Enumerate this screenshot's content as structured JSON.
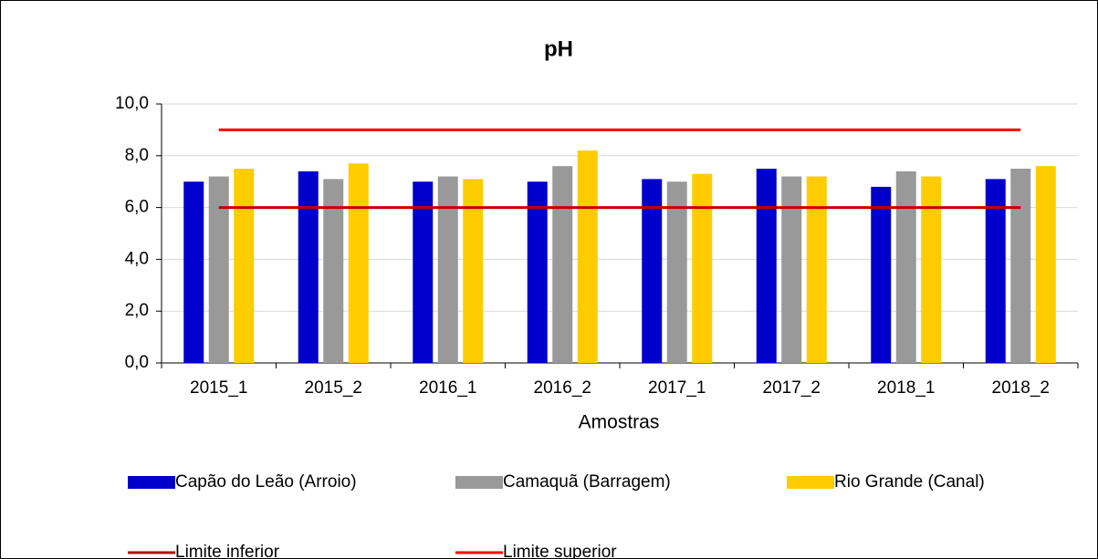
{
  "chart_data": {
    "type": "bar",
    "title": "pH",
    "x_label": "Amostras",
    "categories": [
      "2015_1",
      "2015_2",
      "2016_1",
      "2016_2",
      "2017_1",
      "2017_2",
      "2018_1",
      "2018_2"
    ],
    "series": [
      {
        "name": "Capão do Leão (Arroio)",
        "color": "#0000cc",
        "type": "bar",
        "values": [
          7.0,
          7.4,
          7.0,
          7.0,
          7.1,
          7.5,
          6.8,
          7.1
        ]
      },
      {
        "name": "Camaquã (Barragem)",
        "color": "#999999",
        "type": "bar",
        "values": [
          7.2,
          7.1,
          7.2,
          7.6,
          7.0,
          7.2,
          7.4,
          7.5
        ]
      },
      {
        "name": "Rio Grande (Canal)",
        "color": "#ffcc00",
        "type": "bar",
        "values": [
          7.5,
          7.7,
          7.1,
          8.2,
          7.3,
          7.2,
          7.2,
          7.6
        ]
      },
      {
        "name": "Limite inferior",
        "color": "#c00000",
        "type": "line",
        "values": [
          6.0,
          6.0,
          6.0,
          6.0,
          6.0,
          6.0,
          6.0,
          6.0
        ]
      },
      {
        "name": "Limite superior",
        "color": "#ff0000",
        "type": "line",
        "values": [
          9.0,
          9.0,
          9.0,
          9.0,
          9.0,
          9.0,
          9.0,
          9.0
        ]
      }
    ],
    "ylim": [
      0,
      10
    ],
    "yticks": [
      {
        "value": 0,
        "label": "0,0"
      },
      {
        "value": 2,
        "label": "2,0"
      },
      {
        "value": 4,
        "label": "4,0"
      },
      {
        "value": 6,
        "label": "6,0"
      },
      {
        "value": 8,
        "label": "8,0"
      },
      {
        "value": 10,
        "label": "10,0"
      }
    ],
    "grid": true,
    "legend": "bottom"
  }
}
